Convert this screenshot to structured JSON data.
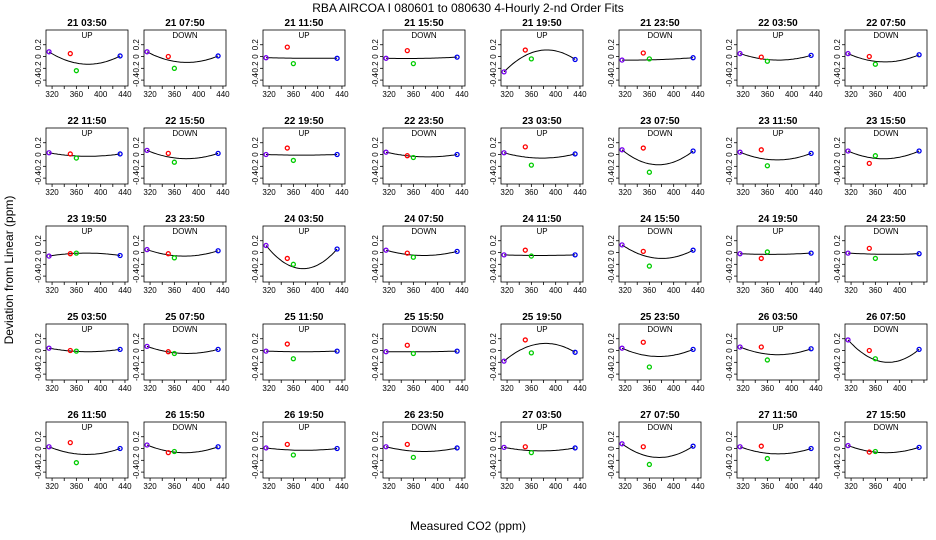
{
  "figure": {
    "title": "RBA   AIRCOA I   080601 to 080630   4-Hourly 2-nd Order Fits",
    "xlabel": "Measured CO2 (ppm)",
    "ylabel": "Deviation from Linear (ppm)"
  },
  "colors": {
    "low_point": "#7700ee",
    "high_point": "#0000ee",
    "up_point": "#ff0000",
    "down_point": "#00cc00",
    "fit_curve": "#000000"
  },
  "chart_data": {
    "type": "scatter",
    "layout": "grid of 40 small-multiple panels, 5 rows x 8 columns",
    "xlim": [
      310,
      445
    ],
    "ylim": [
      -0.5,
      0.45
    ],
    "x_ticks_labeled": [
      320,
      360,
      400,
      440
    ],
    "y_ticks": [
      -0.4,
      -0.2,
      0,
      0.2
    ],
    "y_tick_labels": [
      "-0.4",
      "-0.2",
      "0",
      "0.2"
    ],
    "x_cal": [
      315,
      350,
      360,
      432
    ],
    "point_colors": [
      "#7700ee",
      "#ff0000",
      "#00cc00",
      "#0000ee"
    ],
    "panels": [
      {
        "title": "21 03:50",
        "mode": "UP",
        "y": [
          0.08,
          0.05,
          -0.24,
          0.01
        ],
        "curve_min": -0.13
      },
      {
        "title": "21 07:50",
        "mode": "DOWN",
        "y": [
          0.08,
          0.0,
          -0.2,
          0.01
        ],
        "curve_min": -0.1
      },
      {
        "title": "21 11:50",
        "mode": "UP",
        "y": [
          -0.02,
          0.16,
          -0.12,
          -0.03
        ],
        "curve_min": -0.03
      },
      {
        "title": "21 15:50",
        "mode": "DOWN",
        "y": [
          -0.03,
          0.1,
          -0.12,
          -0.01
        ],
        "curve_min": -0.03
      },
      {
        "title": "21 19:50",
        "mode": "UP",
        "y": [
          -0.26,
          0.11,
          -0.04,
          -0.05
        ],
        "curve_max": 0.11
      },
      {
        "title": "21 23:50",
        "mode": "DOWN",
        "y": [
          -0.06,
          0.06,
          -0.04,
          -0.02
        ],
        "curve_min": -0.05
      },
      {
        "title": "22 03:50",
        "mode": "UP",
        "y": [
          0.05,
          -0.01,
          -0.08,
          0.02
        ],
        "curve_min": -0.06
      },
      {
        "title": "22 07:50",
        "mode": "DOWN",
        "y": [
          0.05,
          0.0,
          -0.13,
          0.03
        ],
        "curve_min": -0.09
      },
      {
        "title": "22 11:50",
        "mode": "UP",
        "y": [
          0.03,
          0.01,
          -0.06,
          0.01
        ],
        "curve_min": -0.03
      },
      {
        "title": "22 15:50",
        "mode": "DOWN",
        "y": [
          0.07,
          0.02,
          -0.13,
          0.02
        ],
        "curve_min": -0.07
      },
      {
        "title": "22 19:50",
        "mode": "UP",
        "y": [
          0.0,
          0.11,
          -0.1,
          0.0
        ],
        "curve_min": -0.01
      },
      {
        "title": "22 23:50",
        "mode": "DOWN",
        "y": [
          0.04,
          -0.02,
          -0.05,
          0.0
        ],
        "curve_min": -0.04
      },
      {
        "title": "23 03:50",
        "mode": "UP",
        "y": [
          0.03,
          0.13,
          -0.18,
          0.01
        ],
        "curve_min": -0.06
      },
      {
        "title": "23 07:50",
        "mode": "DOWN",
        "y": [
          0.08,
          0.11,
          -0.3,
          0.06
        ],
        "curve_min": -0.17
      },
      {
        "title": "23 11:50",
        "mode": "UP",
        "y": [
          0.04,
          0.08,
          -0.19,
          0.02
        ],
        "curve_min": -0.09
      },
      {
        "title": "23 15:50",
        "mode": "DOWN",
        "y": [
          0.06,
          -0.15,
          -0.02,
          0.06
        ],
        "curve_min": -0.07
      },
      {
        "title": "23 19:50",
        "mode": "UP",
        "y": [
          -0.06,
          -0.02,
          -0.01,
          -0.05
        ],
        "curve_max": -0.01
      },
      {
        "title": "23 23:50",
        "mode": "DOWN",
        "y": [
          0.05,
          -0.02,
          -0.09,
          0.03
        ],
        "curve_min": -0.06
      },
      {
        "title": "24 03:50",
        "mode": "UP",
        "y": [
          0.12,
          -0.1,
          -0.2,
          0.06
        ],
        "curve_min": -0.27
      },
      {
        "title": "24 07:50",
        "mode": "DOWN",
        "y": [
          0.04,
          -0.01,
          -0.08,
          0.02
        ],
        "curve_min": -0.05
      },
      {
        "title": "24 11:50",
        "mode": "UP",
        "y": [
          -0.04,
          0.04,
          -0.06,
          -0.04
        ],
        "curve_min": -0.05
      },
      {
        "title": "24 15:50",
        "mode": "DOWN",
        "y": [
          0.13,
          0.02,
          -0.23,
          0.04
        ],
        "curve_min": -0.1
      },
      {
        "title": "24 19:50",
        "mode": "UP",
        "y": [
          -0.02,
          -0.1,
          0.01,
          -0.01
        ],
        "curve_min": -0.03
      },
      {
        "title": "24 23:50",
        "mode": "DOWN",
        "y": [
          -0.01,
          0.07,
          -0.1,
          -0.02
        ],
        "curve_min": -0.03
      },
      {
        "title": "25 03:50",
        "mode": "UP",
        "y": [
          0.04,
          0.0,
          -0.01,
          0.02
        ],
        "curve_min": -0.02
      },
      {
        "title": "25 07:50",
        "mode": "DOWN",
        "y": [
          0.07,
          -0.02,
          -0.05,
          0.02
        ],
        "curve_min": -0.05
      },
      {
        "title": "25 11:50",
        "mode": "UP",
        "y": [
          -0.01,
          0.11,
          -0.14,
          -0.01
        ],
        "curve_min": -0.02
      },
      {
        "title": "25 15:50",
        "mode": "DOWN",
        "y": [
          -0.02,
          0.09,
          -0.05,
          -0.01
        ],
        "curve_min": -0.02
      },
      {
        "title": "25 19:50",
        "mode": "UP",
        "y": [
          -0.18,
          0.18,
          -0.04,
          -0.03
        ],
        "curve_max": 0.12
      },
      {
        "title": "25 23:50",
        "mode": "DOWN",
        "y": [
          0.04,
          0.14,
          -0.28,
          0.02
        ],
        "curve_min": -0.1
      },
      {
        "title": "26 03:50",
        "mode": "UP",
        "y": [
          0.06,
          0.06,
          -0.16,
          0.03
        ],
        "curve_min": -0.07
      },
      {
        "title": "26 07:50",
        "mode": "DOWN",
        "y": [
          0.18,
          0.0,
          -0.14,
          0.02
        ],
        "curve_min": -0.2
      },
      {
        "title": "26 11:50",
        "mode": "UP",
        "y": [
          0.03,
          0.1,
          -0.24,
          0.0
        ],
        "curve_min": -0.1
      },
      {
        "title": "26 15:50",
        "mode": "DOWN",
        "y": [
          0.06,
          -0.07,
          -0.05,
          0.03
        ],
        "curve_min": -0.07
      },
      {
        "title": "26 19:50",
        "mode": "UP",
        "y": [
          0.01,
          0.07,
          -0.11,
          0.0
        ],
        "curve_min": -0.03
      },
      {
        "title": "26 23:50",
        "mode": "DOWN",
        "y": [
          0.03,
          0.07,
          -0.15,
          0.01
        ],
        "curve_min": -0.05
      },
      {
        "title": "27 03:50",
        "mode": "UP",
        "y": [
          0.02,
          0.03,
          -0.07,
          0.01
        ],
        "curve_min": -0.04
      },
      {
        "title": "27 07:50",
        "mode": "DOWN",
        "y": [
          0.08,
          0.03,
          -0.27,
          0.04
        ],
        "curve_min": -0.15
      },
      {
        "title": "27 11:50",
        "mode": "UP",
        "y": [
          0.03,
          0.04,
          -0.17,
          0.0
        ],
        "curve_min": -0.09
      },
      {
        "title": "27 15:50",
        "mode": "DOWN",
        "y": [
          0.05,
          -0.06,
          -0.05,
          0.02
        ],
        "curve_min": -0.07
      }
    ]
  }
}
